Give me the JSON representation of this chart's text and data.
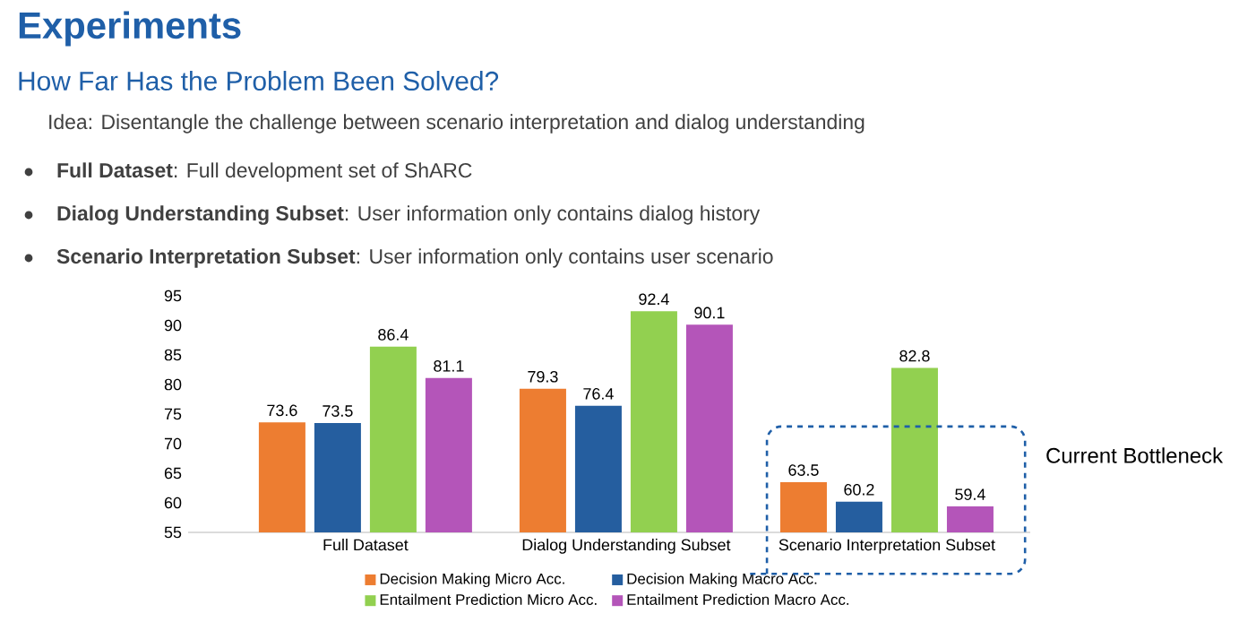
{
  "chart_data": {
    "type": "bar",
    "title": "Experiments",
    "subtitle": "How Far Has the Problem Been Solved?",
    "annotations": [
      "Idea: Disentangle the challenge between scenario interpretation and dialog understanding",
      "**Full Dataset**: Full development set of ShARC",
      "**Dialog Understanding Subset**: User information only contains dialog history",
      "**Scenario Interpretation Subset**: User information only contains user scenario",
      "Current Bottleneck"
    ],
    "categories": [
      "Full Dataset",
      "Dialog Understanding Subset",
      "Scenario Interpretation Subset"
    ],
    "series": [
      {
        "name": "Decision Making Micro Acc.",
        "color": "#ed7d31",
        "values": [
          73.6,
          79.3,
          63.5
        ]
      },
      {
        "name": "Decision Making Macro Acc.",
        "color": "#255e9f",
        "values": [
          73.5,
          76.4,
          60.2
        ]
      },
      {
        "name": "Entailment Prediction Micro Acc.",
        "color": "#92d050",
        "values": [
          86.4,
          92.4,
          82.8
        ]
      },
      {
        "name": "Entailment Prediction Macro Acc.",
        "color": "#b455b9",
        "values": [
          81.1,
          90.1,
          59.4
        ]
      }
    ],
    "ylim": [
      55,
      95
    ],
    "yticks": [
      55,
      60,
      65,
      70,
      75,
      80,
      85,
      90,
      95
    ],
    "data_labels": true,
    "grid": false,
    "legend": "bottom"
  }
}
